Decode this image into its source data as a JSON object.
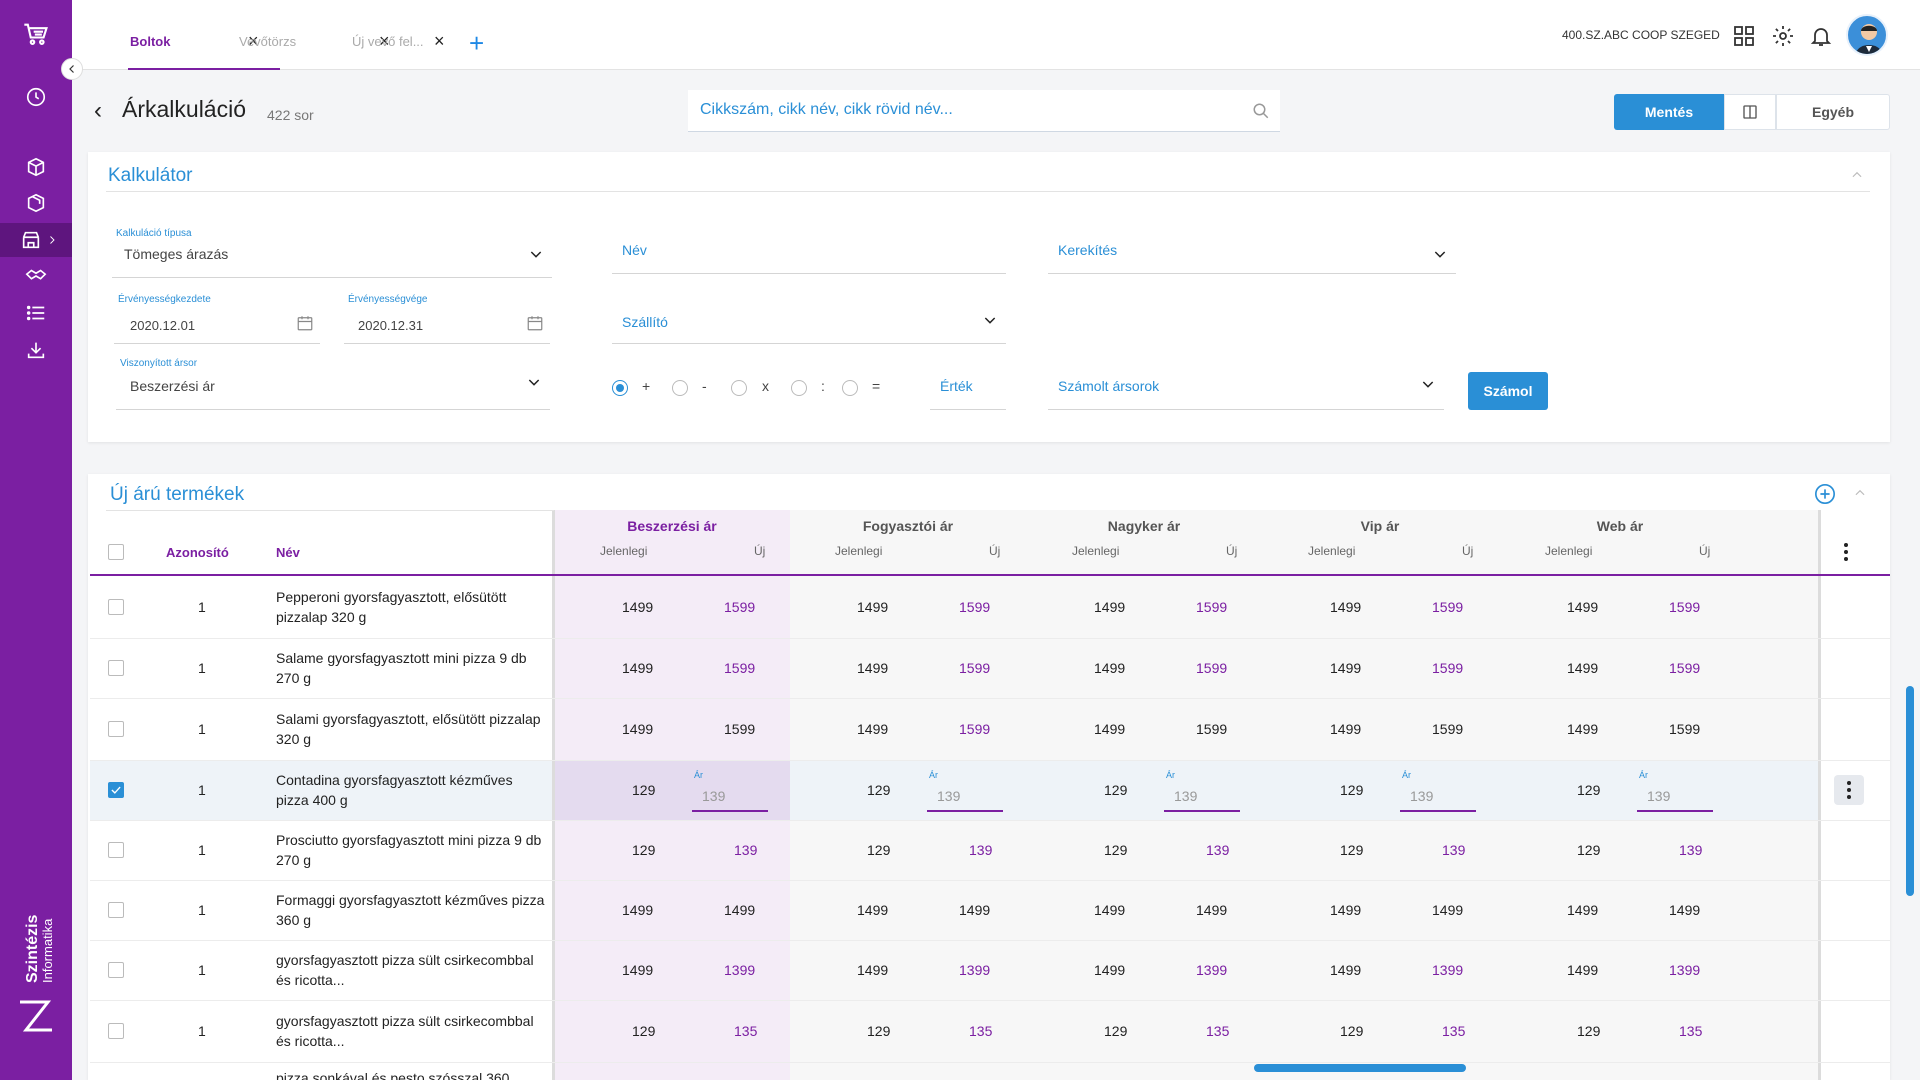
{
  "tabs": [
    {
      "label": "Boltok",
      "active": true
    },
    {
      "label": "Vevőtörzs",
      "active": false
    },
    {
      "label": "Új vevő fel...",
      "active": false
    }
  ],
  "header": {
    "store": "400.SZ.ABC COOP SZEGED"
  },
  "brand": {
    "line1": "Szintézis",
    "line2": "Informatika"
  },
  "page": {
    "title": "Árkalkuláció",
    "row_count": "422 sor",
    "search_placeholder": "Cikkszám, cikk név, cikk rövid név...",
    "save_label": "Mentés",
    "other_label": "Egyéb"
  },
  "calculator": {
    "title": "Kalkulátor",
    "type_label": "Kalkuláció típusa",
    "type_value": "Tömeges árazás",
    "from_label": "Érvényességkezdete",
    "from_value": "2020.12.01",
    "to_label": "Érvényességvége",
    "to_value": "2020.12.31",
    "ref_label": "Viszonyított ársor",
    "ref_value": "Beszerzési ár",
    "name_placeholder": "Név",
    "rounding_placeholder": "Kerekítés",
    "supplier_placeholder": "Szállító",
    "operators": [
      "+",
      "-",
      "x",
      ":",
      "="
    ],
    "selected_operator": "+",
    "value_placeholder": "Érték",
    "computed_placeholder": "Számolt ársorok",
    "calc_label": "Számol"
  },
  "table": {
    "title": "Új árú termékek",
    "col_id": "Azonosító",
    "col_name": "Név",
    "groups": [
      "Beszerzési ár",
      "Fogyasztói ár",
      "Nagyker ár",
      "Vip ár",
      "Web ár"
    ],
    "sub_current": "Jelenlegi",
    "sub_new": "Új",
    "edit_label": "Ár",
    "rows": [
      {
        "checked": false,
        "id": "1",
        "name": "Pepperoni gyorsfagyasztott, elősütött pizzalap 320 g",
        "cur": [
          "1499",
          "1499",
          "1499",
          "1499",
          "1499"
        ],
        "new": [
          "1599",
          "1599",
          "1599",
          "1599",
          "1599"
        ],
        "changed": [
          true,
          true,
          true,
          true,
          true
        ]
      },
      {
        "checked": false,
        "id": "1",
        "name": "Salame gyorsfagyasztott mini pizza 9 db 270 g",
        "cur": [
          "1499",
          "1499",
          "1499",
          "1499",
          "1499"
        ],
        "new": [
          "1599",
          "1599",
          "1599",
          "1599",
          "1599"
        ],
        "changed": [
          true,
          true,
          true,
          true,
          true
        ]
      },
      {
        "checked": false,
        "id": "1",
        "name": "Salami gyorsfagyasztott, elősütött pizzalap 320 g",
        "cur": [
          "1499",
          "1499",
          "1499",
          "1499",
          "1499"
        ],
        "new": [
          "1599",
          "1599",
          "1599",
          "1599",
          "1599"
        ],
        "changed": [
          false,
          true,
          false,
          false,
          false
        ]
      },
      {
        "checked": true,
        "id": "1",
        "name": "Contadina gyorsfagyasztott kézműves pizza 400 g",
        "cur": [
          "129",
          "129",
          "129",
          "129",
          "129"
        ],
        "new": [
          "139",
          "139",
          "139",
          "139",
          "139"
        ],
        "editing": true
      },
      {
        "checked": false,
        "id": "1",
        "name": "Prosciutto gyorsfagyasztott mini pizza 9 db 270 g",
        "cur": [
          "129",
          "129",
          "129",
          "129",
          "129"
        ],
        "new": [
          "139",
          "139",
          "139",
          "139",
          "139"
        ],
        "changed": [
          true,
          true,
          true,
          true,
          true
        ]
      },
      {
        "checked": false,
        "id": "1",
        "name": "Formaggi gyorsfagyasztott kézműves pizza 360 g",
        "cur": [
          "1499",
          "1499",
          "1499",
          "1499",
          "1499"
        ],
        "new": [
          "1499",
          "1499",
          "1499",
          "1499",
          "1499"
        ],
        "changed": [
          false,
          false,
          false,
          false,
          false
        ]
      },
      {
        "checked": false,
        "id": "1",
        "name": "gyorsfagyasztott pizza sült csirkecombbal és ricotta...",
        "cur": [
          "1499",
          "1499",
          "1499",
          "1499",
          "1499"
        ],
        "new": [
          "1399",
          "1399",
          "1399",
          "1399",
          "1399"
        ],
        "changed": [
          true,
          true,
          true,
          true,
          true
        ]
      },
      {
        "checked": false,
        "id": "1",
        "name": "gyorsfagyasztott pizza sült csirkecombbal és ricotta...",
        "cur": [
          "129",
          "129",
          "129",
          "129",
          "129"
        ],
        "new": [
          "135",
          "135",
          "135",
          "135",
          "135"
        ],
        "changed": [
          true,
          true,
          true,
          true,
          true
        ]
      }
    ],
    "partial_row": "pizza sonkával és pesto szósszal 360"
  },
  "colors": {
    "primary": "#7b1fa2",
    "accent": "#2a8fd6"
  }
}
